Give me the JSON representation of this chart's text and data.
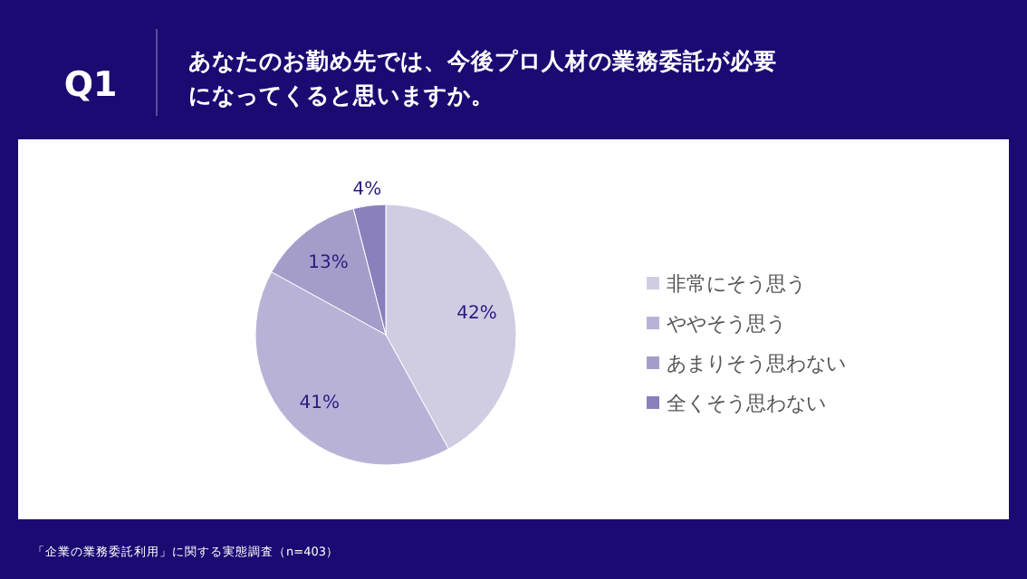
{
  "chart_data": {
    "type": "pie",
    "title": "Q1",
    "subtitle": "あなたのお勤め先では、今後プロ人材の業務委託が必要になってくると思いますか。",
    "categories": [
      "非常にそう思う",
      "ややそう思う",
      "あまりそう思わない",
      "全くそう思わない"
    ],
    "values": [
      42,
      41,
      13,
      4
    ],
    "colors": [
      "#d0cde3",
      "#b8b3d6",
      "#a59dc9",
      "#8a80bb"
    ],
    "value_labels": [
      "42%",
      "41%",
      "13%",
      "4%"
    ],
    "legend": "right",
    "annotations": [
      "「企業の業務委託利用」に関する実態調査（n=403）"
    ]
  }
}
